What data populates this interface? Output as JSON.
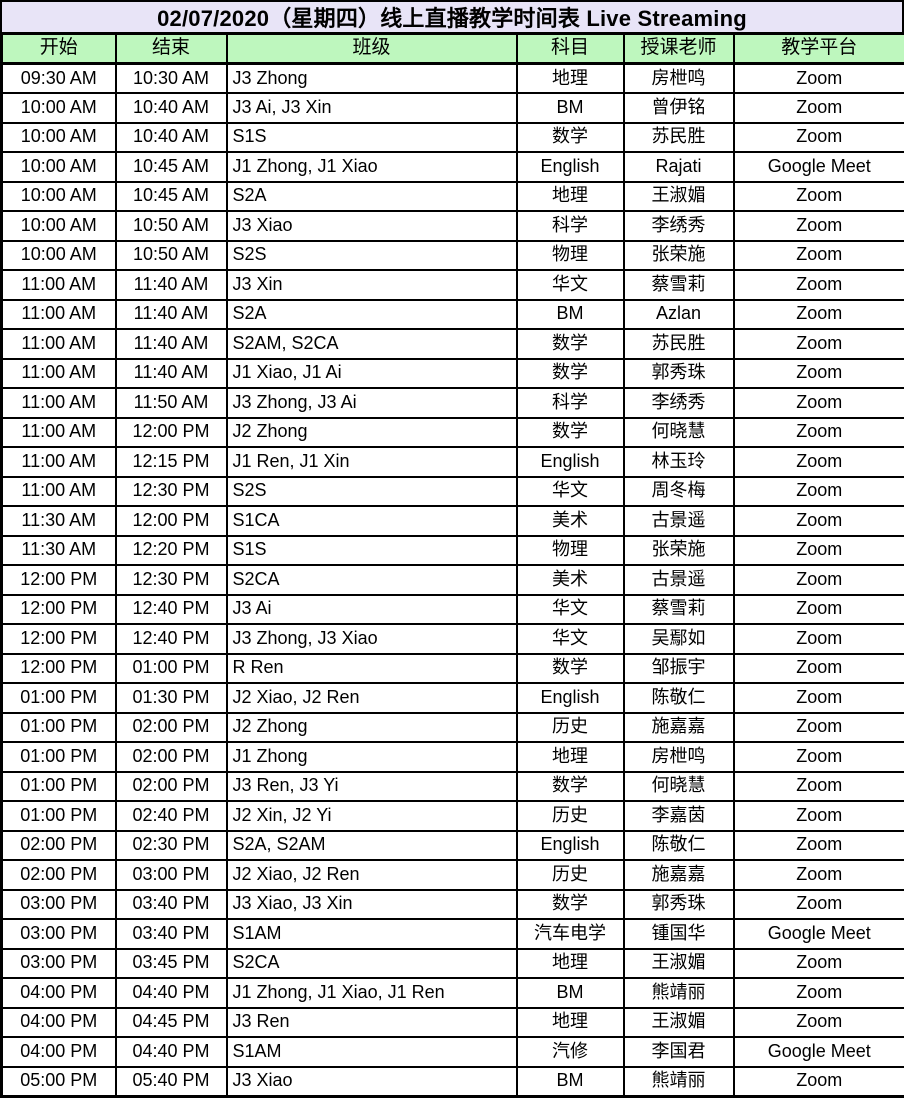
{
  "title": "02/07/2020（星期四）线上直播教学时间表 Live Streaming",
  "columns": [
    "开始",
    "结束",
    "班级",
    "科目",
    "授课老师",
    "教学平台"
  ],
  "rows": [
    [
      "09:30 AM",
      "10:30 AM",
      "J3 Zhong",
      "地理",
      "房枻鸣",
      "Zoom"
    ],
    [
      "10:00 AM",
      "10:40 AM",
      "J3 Ai, J3 Xin",
      "BM",
      "曾伊铭",
      "Zoom"
    ],
    [
      "10:00 AM",
      "10:40 AM",
      "S1S",
      "数学",
      "苏民胜",
      "Zoom"
    ],
    [
      "10:00 AM",
      "10:45 AM",
      "J1 Zhong, J1 Xiao",
      "English",
      "Rajati",
      "Google Meet"
    ],
    [
      "10:00 AM",
      "10:45 AM",
      "S2A",
      "地理",
      "王淑媚",
      "Zoom"
    ],
    [
      "10:00 AM",
      "10:50 AM",
      "J3 Xiao",
      "科学",
      "李绣秀",
      "Zoom"
    ],
    [
      "10:00 AM",
      "10:50 AM",
      "S2S",
      "物理",
      "张荣施",
      "Zoom"
    ],
    [
      "11:00 AM",
      "11:40 AM",
      "J3 Xin",
      "华文",
      "蔡雪莉",
      "Zoom"
    ],
    [
      "11:00 AM",
      "11:40 AM",
      "S2A",
      "BM",
      "Azlan",
      "Zoom"
    ],
    [
      "11:00 AM",
      "11:40 AM",
      "S2AM, S2CA",
      "数学",
      "苏民胜",
      "Zoom"
    ],
    [
      "11:00 AM",
      "11:40 AM",
      "J1 Xiao, J1 Ai",
      "数学",
      "郭秀珠",
      "Zoom"
    ],
    [
      "11:00 AM",
      "11:50 AM",
      "J3 Zhong, J3 Ai",
      "科学",
      "李绣秀",
      "Zoom"
    ],
    [
      "11:00 AM",
      "12:00 PM",
      "J2 Zhong",
      "数学",
      "何晓慧",
      "Zoom"
    ],
    [
      "11:00 AM",
      "12:15 PM",
      "J1 Ren, J1 Xin",
      "English",
      "林玉玲",
      "Zoom"
    ],
    [
      "11:00 AM",
      "12:30 PM",
      "S2S",
      "华文",
      "周冬梅",
      "Zoom"
    ],
    [
      "11:30 AM",
      "12:00 PM",
      "S1CA",
      "美术",
      "古景遥",
      "Zoom"
    ],
    [
      "11:30 AM",
      "12:20 PM",
      "S1S",
      "物理",
      "张荣施",
      "Zoom"
    ],
    [
      "12:00 PM",
      "12:30 PM",
      "S2CA",
      "美术",
      "古景遥",
      "Zoom"
    ],
    [
      "12:00 PM",
      "12:40 PM",
      "J3 Ai",
      "华文",
      "蔡雪莉",
      "Zoom"
    ],
    [
      "12:00 PM",
      "12:40 PM",
      "J3 Zhong, J3 Xiao",
      "华文",
      "吴鄢如",
      "Zoom"
    ],
    [
      "12:00 PM",
      "01:00 PM",
      "R Ren",
      "数学",
      "邹振宇",
      "Zoom"
    ],
    [
      "01:00 PM",
      "01:30 PM",
      "J2 Xiao, J2 Ren",
      "English",
      "陈敬仁",
      "Zoom"
    ],
    [
      "01:00 PM",
      "02:00 PM",
      "J2 Zhong",
      "历史",
      "施嘉嘉",
      "Zoom"
    ],
    [
      "01:00 PM",
      "02:00 PM",
      "J1 Zhong",
      "地理",
      "房枻鸣",
      "Zoom"
    ],
    [
      "01:00 PM",
      "02:00 PM",
      "J3 Ren, J3 Yi",
      "数学",
      "何晓慧",
      "Zoom"
    ],
    [
      "01:00 PM",
      "02:40 PM",
      "J2 Xin, J2 Yi",
      "历史",
      "李嘉茵",
      "Zoom"
    ],
    [
      "02:00 PM",
      "02:30 PM",
      "S2A, S2AM",
      "English",
      "陈敬仁",
      "Zoom"
    ],
    [
      "02:00 PM",
      "03:00 PM",
      "J2 Xiao, J2 Ren",
      "历史",
      "施嘉嘉",
      "Zoom"
    ],
    [
      "03:00 PM",
      "03:40 PM",
      "J3 Xiao, J3 Xin",
      "数学",
      "郭秀珠",
      "Zoom"
    ],
    [
      "03:00 PM",
      "03:40 PM",
      "S1AM",
      "汽车电学",
      "锺国华",
      "Google Meet"
    ],
    [
      "03:00 PM",
      "03:45 PM",
      "S2CA",
      "地理",
      "王淑媚",
      "Zoom"
    ],
    [
      "04:00 PM",
      "04:40 PM",
      "J1 Zhong, J1 Xiao, J1 Ren",
      "BM",
      "熊靖丽",
      "Zoom"
    ],
    [
      "04:00 PM",
      "04:45 PM",
      "J3 Ren",
      "地理",
      "王淑媚",
      "Zoom"
    ],
    [
      "04:00 PM",
      "04:40 PM",
      "S1AM",
      "汽修",
      "李国君",
      "Google Meet"
    ],
    [
      "05:00 PM",
      "05:40 PM",
      "J3 Xiao",
      "BM",
      "熊靖丽",
      "Zoom"
    ]
  ],
  "colors": {
    "title_bg": "#E8E4F7",
    "header_bg": "#BEF7BE",
    "border": "#000000",
    "row_bg": "#FFFFFF"
  }
}
